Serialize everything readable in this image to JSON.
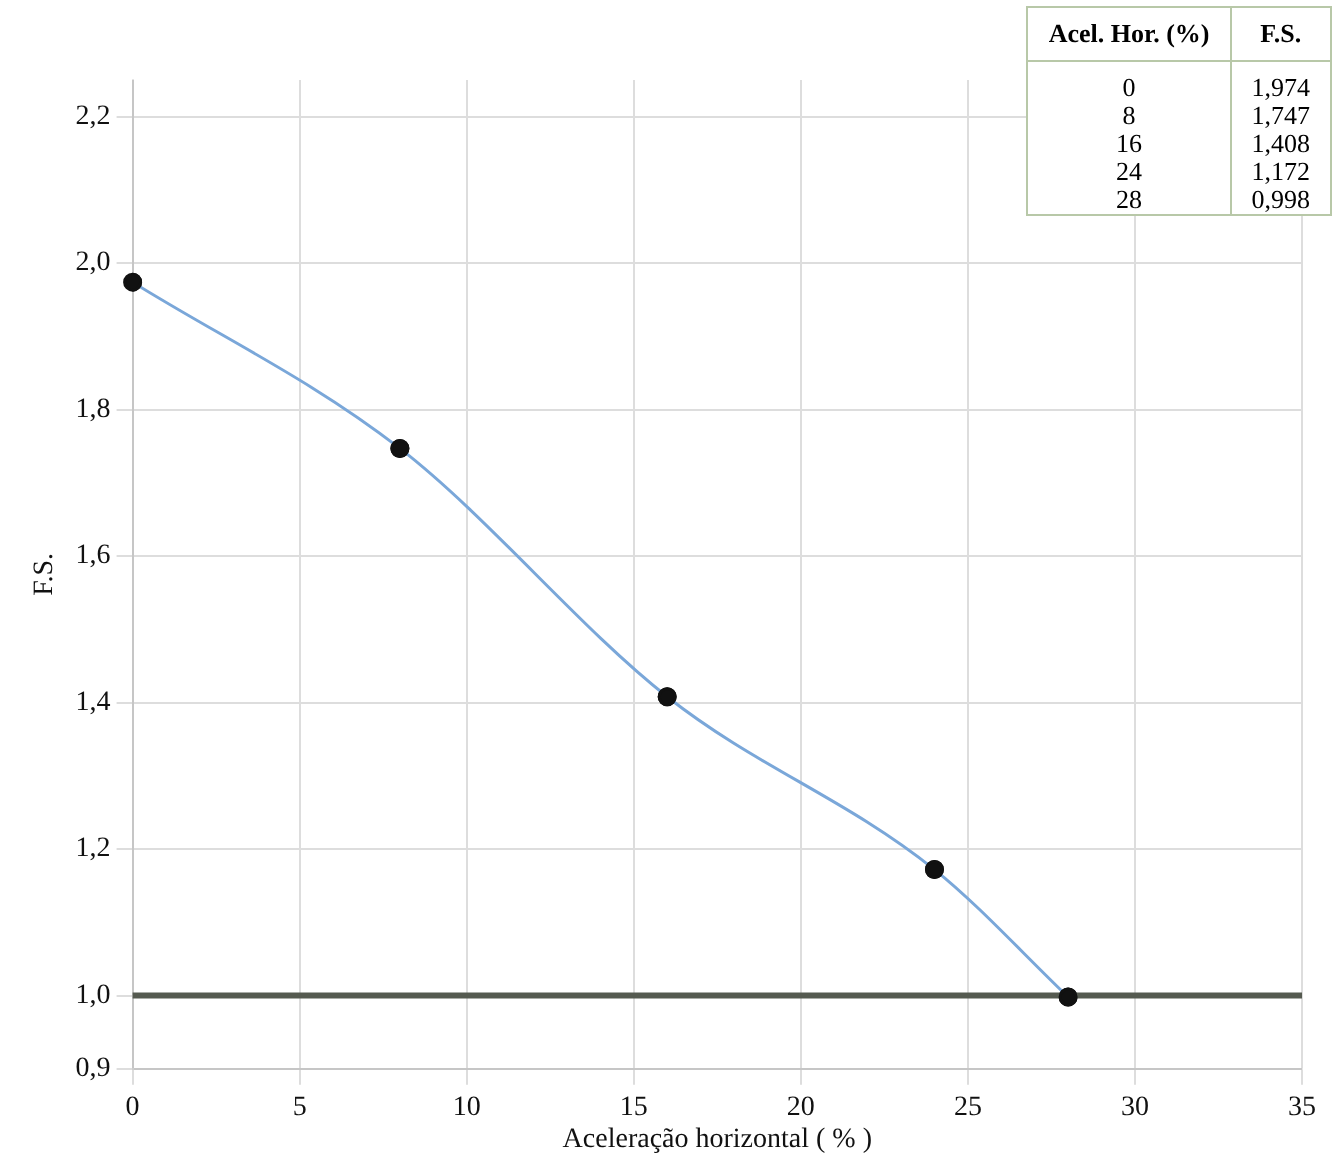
{
  "chart_data": [
    {
      "type": "line",
      "xlabel": "Aceleração horizontal ( % )",
      "ylabel": "F.S.",
      "x": [
        0,
        8,
        16,
        24,
        28
      ],
      "series": [
        {
          "color": "#7aa7d9",
          "values": [
            1.974,
            1.747,
            1.408,
            1.172,
            0.998
          ]
        }
      ],
      "xlim": [
        0,
        35
      ],
      "xticks": [
        0,
        5,
        10,
        15,
        20,
        25,
        30,
        35
      ],
      "ylim": [
        0.9,
        2.25
      ],
      "yticks": [
        {
          "value": 0.9,
          "label": "0,9"
        },
        {
          "value": 1.0,
          "label": "1,0"
        },
        {
          "value": 1.2,
          "label": "1,2"
        },
        {
          "value": 1.4,
          "label": "1,4"
        },
        {
          "value": 1.6,
          "label": "1,6"
        },
        {
          "value": 1.8,
          "label": "1,8"
        },
        {
          "value": 2.0,
          "label": "2,0"
        },
        {
          "value": 2.2,
          "label": "2,2"
        }
      ],
      "ref_lines": [
        {
          "axis": "y",
          "value": 1.0,
          "color": "#555a50"
        }
      ],
      "grid": true,
      "marker": "circle",
      "line_style": "solid"
    },
    {
      "type": "other",
      "annotations": [
        "Acel. Hor. (%)",
        "F.S.",
        "0",
        "1,974",
        "8",
        "1,747",
        "16",
        "1,408",
        "24",
        "1,172",
        "28",
        "0,998"
      ]
    }
  ]
}
